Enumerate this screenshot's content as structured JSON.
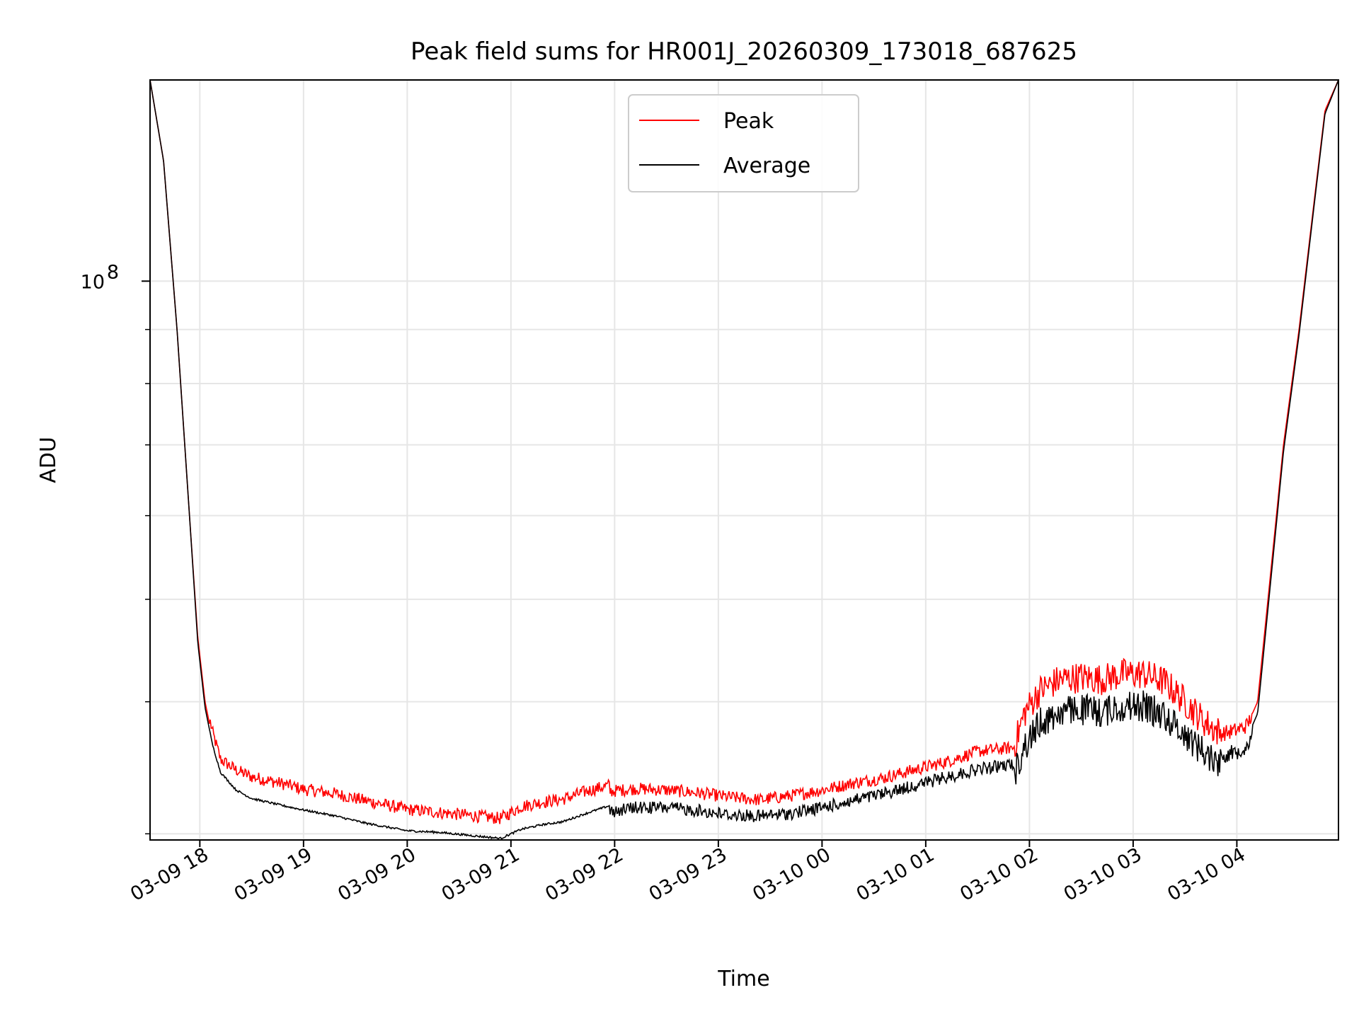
{
  "chart_data": {
    "type": "line",
    "title": "Peak field sums for HR001J_20260309_173018_687625",
    "xlabel": "Time",
    "ylabel": "ADU",
    "yscale": "log",
    "ylim": [
      29600000,
      155000000
    ],
    "xlim_hours": [
      17.52,
      28.98
    ],
    "grid": true,
    "x_ticks": [
      {
        "hour": 18,
        "label": "03-09 18"
      },
      {
        "hour": 19,
        "label": "03-09 19"
      },
      {
        "hour": 20,
        "label": "03-09 20"
      },
      {
        "hour": 21,
        "label": "03-09 21"
      },
      {
        "hour": 22,
        "label": "03-09 22"
      },
      {
        "hour": 23,
        "label": "03-09 23"
      },
      {
        "hour": 24,
        "label": "03-10 00"
      },
      {
        "hour": 25,
        "label": "03-10 01"
      },
      {
        "hour": 26,
        "label": "03-10 02"
      },
      {
        "hour": 27,
        "label": "03-10 03"
      },
      {
        "hour": 28,
        "label": "03-10 04"
      }
    ],
    "y_major_tick": {
      "value": 100000000,
      "base": "10",
      "exponent": "8"
    },
    "y_minor_ticks": [
      30000000,
      40000000,
      50000000,
      60000000,
      70000000,
      80000000,
      90000000,
      200000000
    ],
    "legend": {
      "position": "top-center",
      "entries": [
        "Peak",
        "Average"
      ]
    },
    "series": [
      {
        "name": "Peak",
        "color": "#ff0000",
        "x_hours": [
          17.52,
          17.65,
          17.78,
          17.9,
          17.98,
          18.05,
          18.12,
          18.2,
          18.35,
          18.5,
          18.8,
          19.0,
          19.3,
          19.6,
          20.0,
          20.3,
          20.6,
          20.9,
          21.1,
          21.3,
          21.5,
          21.7,
          21.95,
          22.2,
          22.5,
          22.8,
          23.1,
          23.4,
          23.7,
          24.0,
          24.3,
          24.6,
          24.9,
          25.2,
          25.5,
          25.85,
          25.95,
          26.1,
          26.3,
          26.5,
          26.7,
          26.9,
          27.1,
          27.3,
          27.5,
          27.7,
          27.85,
          28.0,
          28.1,
          28.2,
          28.3,
          28.45,
          28.6,
          28.75,
          28.85,
          28.98
        ],
        "values": [
          155000000,
          130000000,
          90000000,
          60000000,
          46000000,
          40000000,
          37000000,
          34800000,
          34000000,
          33500000,
          33000000,
          32600000,
          32300000,
          31800000,
          31200000,
          31000000,
          30800000,
          30600000,
          31400000,
          31700000,
          31900000,
          32400000,
          32900000,
          33100000,
          33000000,
          32800000,
          32500000,
          32300000,
          32600000,
          33000000,
          33500000,
          33900000,
          34500000,
          35100000,
          35900000,
          36200000,
          39000000,
          41000000,
          42000000,
          42200000,
          42000000,
          42500000,
          42500000,
          41800000,
          40000000,
          38200000,
          37300000,
          37600000,
          38000000,
          40000000,
          50000000,
          70000000,
          90000000,
          120000000,
          145000000,
          155000000
        ]
      },
      {
        "name": "Average",
        "color": "#000000",
        "x_hours": [
          17.52,
          17.65,
          17.78,
          17.9,
          17.98,
          18.05,
          18.12,
          18.2,
          18.35,
          18.5,
          18.8,
          19.0,
          19.3,
          19.6,
          20.0,
          20.3,
          20.6,
          20.9,
          21.1,
          21.3,
          21.5,
          21.7,
          21.95,
          22.2,
          22.5,
          22.8,
          23.1,
          23.4,
          23.7,
          24.0,
          24.3,
          24.6,
          24.9,
          25.2,
          25.5,
          25.85,
          25.95,
          26.1,
          26.3,
          26.5,
          26.7,
          26.9,
          27.1,
          27.3,
          27.5,
          27.7,
          27.85,
          28.0,
          28.1,
          28.2,
          28.3,
          28.45,
          28.6,
          28.75,
          28.85,
          28.98
        ],
        "values": [
          155000000,
          130000000,
          90000000,
          60000000,
          45500000,
          39500000,
          36500000,
          34300000,
          33000000,
          32400000,
          31900000,
          31600000,
          31200000,
          30700000,
          30200000,
          30100000,
          29900000,
          29700000,
          30300000,
          30600000,
          30800000,
          31300000,
          31900000,
          32200000,
          32200000,
          32000000,
          31700000,
          31600000,
          31800000,
          32200000,
          32700000,
          33200000,
          33800000,
          34400000,
          35000000,
          35400000,
          37500000,
          39500000,
          40500000,
          40700000,
          40500000,
          41000000,
          41000000,
          40200000,
          38600000,
          37000000,
          36200000,
          36500000,
          37000000,
          39000000,
          49000000,
          69000000,
          89000000,
          119000000,
          144000000,
          155000000
        ]
      }
    ]
  }
}
